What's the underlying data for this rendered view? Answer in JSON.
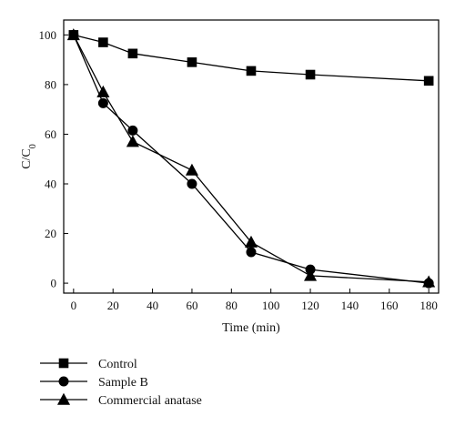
{
  "chart_data": {
    "type": "line",
    "title": "",
    "xlabel": "Time (min)",
    "ylabel": "C/C0",
    "ylabel_parts": {
      "c": "C/C",
      "sub": "0"
    },
    "xlim": [
      -5,
      185
    ],
    "ylim": [
      -4,
      106
    ],
    "xticks": [
      0,
      20,
      40,
      60,
      80,
      100,
      120,
      140,
      160,
      180
    ],
    "yticks": [
      0,
      20,
      40,
      60,
      80,
      100
    ],
    "grid": false,
    "legend_position": "bottom-left",
    "series": [
      {
        "name": "Control",
        "marker": "square",
        "color": "#000000",
        "x": [
          0,
          15,
          30,
          60,
          90,
          120,
          180
        ],
        "y": [
          100,
          97,
          92.5,
          89,
          85.5,
          84,
          81.5
        ]
      },
      {
        "name": "Sample B",
        "marker": "circle",
        "color": "#000000",
        "x": [
          0,
          15,
          30,
          60,
          90,
          120,
          180
        ],
        "y": [
          100,
          72.5,
          61.5,
          40,
          12.5,
          5.5,
          0
        ]
      },
      {
        "name": "Commercial anatase",
        "marker": "triangle",
        "color": "#000000",
        "x": [
          0,
          15,
          30,
          60,
          90,
          120,
          180
        ],
        "y": [
          100,
          77,
          57,
          45.5,
          16.5,
          3,
          0.5
        ]
      }
    ]
  }
}
